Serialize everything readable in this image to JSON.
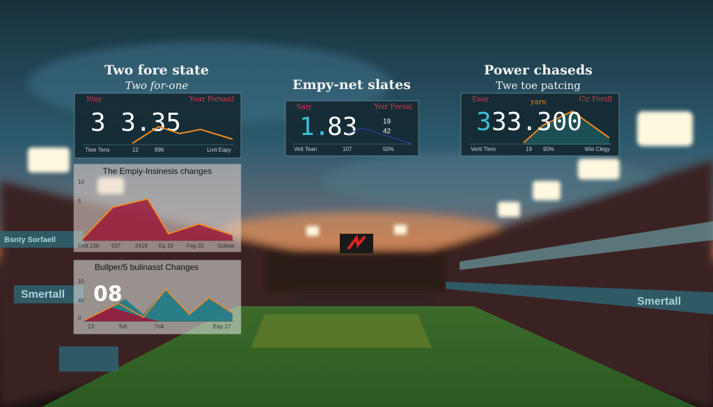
{
  "headings": [
    {
      "title": "Two fore state",
      "subtitle": "Two for-one"
    },
    {
      "title": "Empy-net slates"
    },
    {
      "title": "Power chaseds",
      "subtitle": "Twe toe patcing"
    }
  ],
  "cards": [
    {
      "left": "Stay",
      "right": "Your Forsanl",
      "value": "3 3.35",
      "footer": [
        "Tiwe Tens",
        "12",
        "996",
        "Livit Eapy"
      ]
    },
    {
      "left": "Saiy",
      "right": "Yoir Forsal",
      "value_accent": "1.",
      "value": "83",
      "side": [
        "19",
        "42"
      ],
      "footer": [
        "Vett Tean",
        "107",
        "50%"
      ]
    },
    {
      "left": "Easy",
      "mid": "yaru",
      "right": "Cir Forsll",
      "value_accent": "3",
      "value": "33.300",
      "footer": [
        "Vertt Tiem",
        "19",
        "90%",
        "Wie Clegy"
      ]
    }
  ],
  "charts": [
    {
      "title": "The Empiy-Insinesis changes",
      "yticks": [
        "10",
        "5"
      ],
      "xlabels": [
        "Uett 136",
        "537",
        "2419",
        "Ep 19",
        "Feg 32",
        "Sstieat"
      ]
    },
    {
      "title": "Bullper/5 bulinasst Changes",
      "big": "08",
      "yticks": [
        "10",
        "45",
        "0"
      ],
      "xlabels": [
        "13",
        "Tsft",
        "7o4",
        "Eep 17"
      ]
    }
  ],
  "signs": [
    "Smertall",
    "Smertall",
    "Bsnty Sorfaell"
  ]
}
